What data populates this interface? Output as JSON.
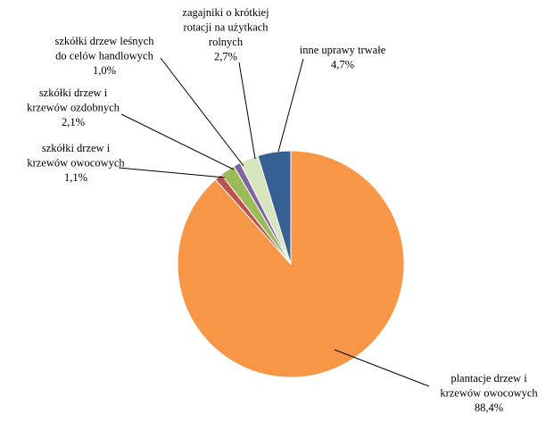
{
  "chart_data": {
    "type": "pie",
    "categories": [
      "plantacje drzew i\nkrzewów owocowych",
      "szkółki drzew i\nkrzewów owocowych",
      "szkółki drzew i\nkrzewów ozdobnych",
      "szkółki drzew leśnych\ndo celów handlowych",
      "zagajniki o krótkiej\nrotacji na użytkach\nrolnych",
      "inne uprawy trwałe"
    ],
    "values": [
      88.4,
      1.1,
      2.1,
      1.0,
      2.7,
      4.7
    ],
    "value_labels": [
      "88,4%",
      "1,1%",
      "2,1%",
      "1,0%",
      "2,7%",
      "4,7%"
    ],
    "colors": [
      "#f79646",
      "#c0504d",
      "#9bbb59",
      "#8064a2",
      "#d7e4bd",
      "#376092"
    ]
  }
}
